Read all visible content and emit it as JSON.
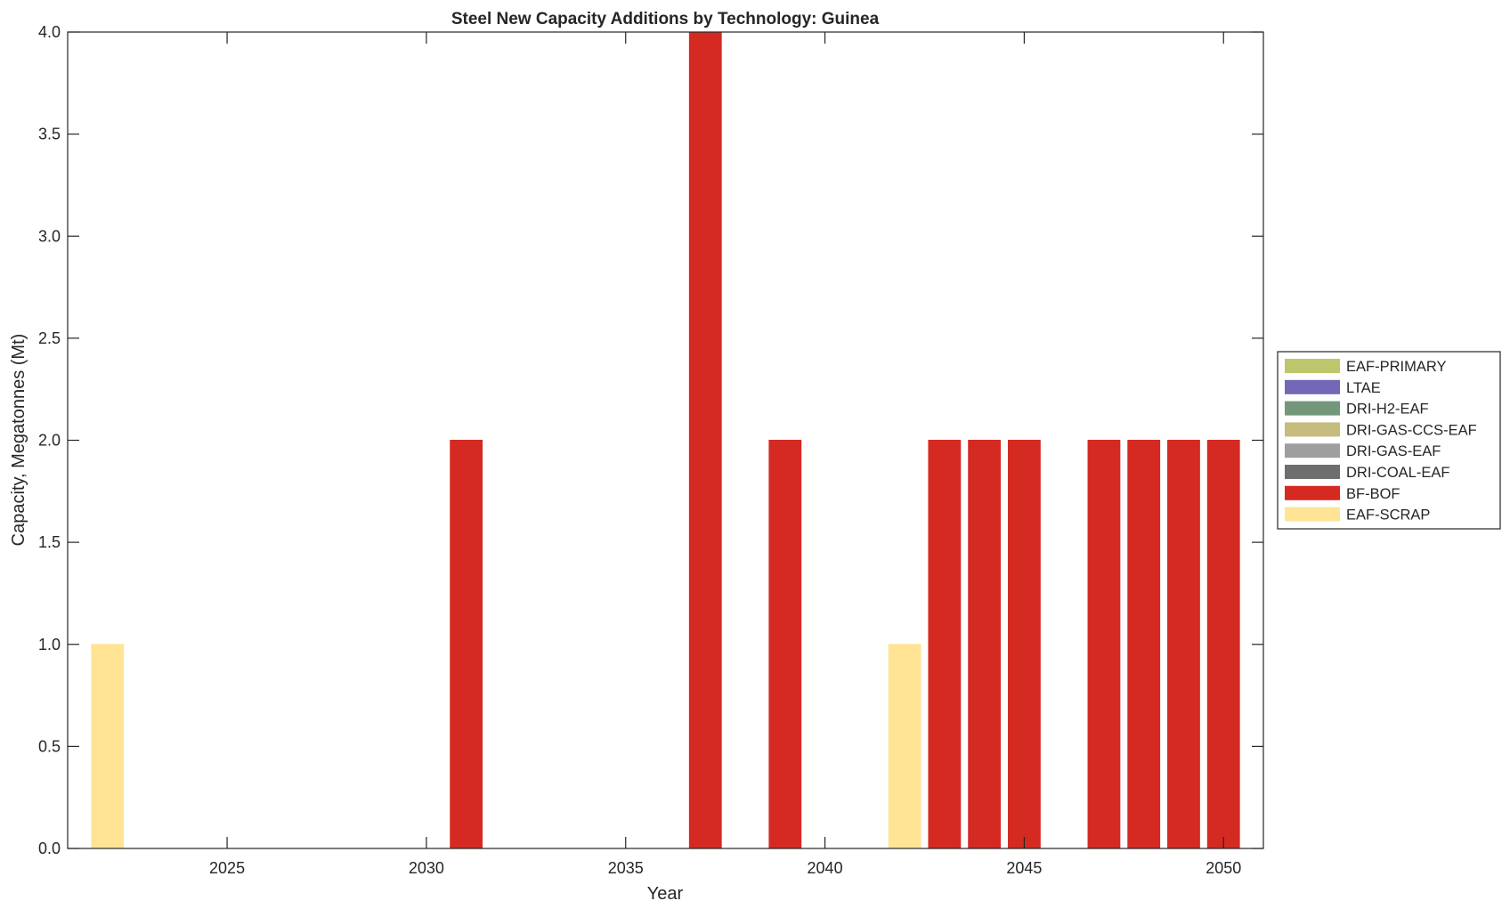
{
  "chart_data": {
    "type": "bar",
    "stacked": true,
    "title": "Steel New Capacity Additions by Technology: Guinea",
    "xlabel": "Year",
    "ylabel": "Capacity, Megatonnes (Mt)",
    "xlim": [
      2021,
      2051
    ],
    "ylim": [
      0,
      4
    ],
    "xticks": [
      2025,
      2030,
      2035,
      2040,
      2045,
      2050
    ],
    "yticks": [
      "0.0",
      "0.5",
      "1.0",
      "1.5",
      "2.0",
      "2.5",
      "3.0",
      "3.5",
      "4.0"
    ],
    "grid": false,
    "legend_position": "outside-right",
    "x": [
      2022,
      2023,
      2024,
      2025,
      2026,
      2027,
      2028,
      2029,
      2030,
      2031,
      2032,
      2033,
      2034,
      2035,
      2036,
      2037,
      2038,
      2039,
      2040,
      2041,
      2042,
      2043,
      2044,
      2045,
      2046,
      2047,
      2048,
      2049,
      2050
    ],
    "series": [
      {
        "name": "EAF-SCRAP",
        "color": "#FFE496",
        "values": [
          1,
          0,
          0,
          0,
          0,
          0,
          0,
          0,
          0,
          0,
          0,
          0,
          0,
          0,
          0,
          0,
          0,
          0,
          0,
          0,
          1,
          0,
          0,
          0,
          0,
          0,
          0,
          0,
          0
        ]
      },
      {
        "name": "BF-BOF",
        "color": "#D42A22",
        "values": [
          0,
          0,
          0,
          0,
          0,
          0,
          0,
          0,
          0,
          2,
          0,
          0,
          0,
          0,
          0,
          4,
          0,
          2,
          0,
          0,
          0,
          2,
          2,
          2,
          0,
          2,
          2,
          2,
          2
        ]
      },
      {
        "name": "DRI-COAL-EAF",
        "color": "#6E6E6E",
        "values": [
          0,
          0,
          0,
          0,
          0,
          0,
          0,
          0,
          0,
          0,
          0,
          0,
          0,
          0,
          0,
          0,
          0,
          0,
          0,
          0,
          0,
          0,
          0,
          0,
          0,
          0,
          0,
          0,
          0
        ]
      },
      {
        "name": "DRI-GAS-EAF",
        "color": "#9E9E9E",
        "values": [
          0,
          0,
          0,
          0,
          0,
          0,
          0,
          0,
          0,
          0,
          0,
          0,
          0,
          0,
          0,
          0,
          0,
          0,
          0,
          0,
          0,
          0,
          0,
          0,
          0,
          0,
          0,
          0,
          0
        ]
      },
      {
        "name": "DRI-GAS-CCS-EAF",
        "color": "#C5BC7D",
        "values": [
          0,
          0,
          0,
          0,
          0,
          0,
          0,
          0,
          0,
          0,
          0,
          0,
          0,
          0,
          0,
          0,
          0,
          0,
          0,
          0,
          0,
          0,
          0,
          0,
          0,
          0,
          0,
          0,
          0
        ]
      },
      {
        "name": "DRI-H2-EAF",
        "color": "#73977A",
        "values": [
          0,
          0,
          0,
          0,
          0,
          0,
          0,
          0,
          0,
          0,
          0,
          0,
          0,
          0,
          0,
          0,
          0,
          0,
          0,
          0,
          0,
          0,
          0,
          0,
          0,
          0,
          0,
          0,
          0
        ]
      },
      {
        "name": "LTAE",
        "color": "#7268B6",
        "values": [
          0,
          0,
          0,
          0,
          0,
          0,
          0,
          0,
          0,
          0,
          0,
          0,
          0,
          0,
          0,
          0,
          0,
          0,
          0,
          0,
          0,
          0,
          0,
          0,
          0,
          0,
          0,
          0,
          0
        ]
      },
      {
        "name": "EAF-PRIMARY",
        "color": "#BDC66A",
        "values": [
          0,
          0,
          0,
          0,
          0,
          0,
          0,
          0,
          0,
          0,
          0,
          0,
          0,
          0,
          0,
          0,
          0,
          0,
          0,
          0,
          0,
          0,
          0,
          0,
          0,
          0,
          0,
          0,
          0
        ]
      }
    ],
    "legend_order": [
      "EAF-PRIMARY",
      "LTAE",
      "DRI-H2-EAF",
      "DRI-GAS-CCS-EAF",
      "DRI-GAS-EAF",
      "DRI-COAL-EAF",
      "BF-BOF",
      "EAF-SCRAP"
    ]
  }
}
